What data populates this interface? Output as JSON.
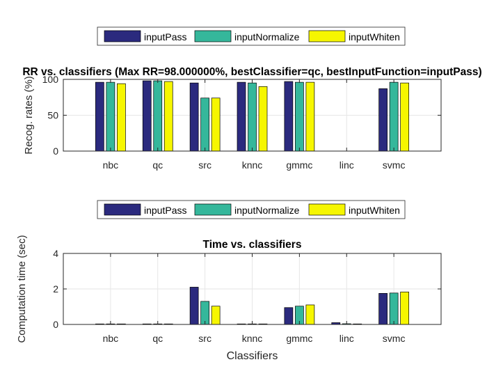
{
  "figure": {
    "xlabel": "Classifiers"
  },
  "colors": {
    "inputPass": "#2b2a7e",
    "inputNormalize": "#35b79b",
    "inputWhiten": "#f6f600"
  },
  "chart_data": [
    {
      "type": "bar",
      "title": "RR vs. classifiers (Max RR=98.000000%, bestClassifier=qc, bestInputFunction=inputPass)",
      "xlabel": "",
      "ylabel": "Recog. rates (%)",
      "categories": [
        "nbc",
        "qc",
        "src",
        "knnc",
        "gmmc",
        "linc",
        "svmc"
      ],
      "series": [
        {
          "name": "inputPass",
          "values": [
            96,
            98,
            95,
            96,
            97,
            null,
            87
          ]
        },
        {
          "name": "inputNormalize",
          "values": [
            96,
            98,
            74,
            95,
            96,
            null,
            96
          ]
        },
        {
          "name": "inputWhiten",
          "values": [
            94,
            97,
            74,
            90,
            96,
            null,
            95
          ]
        }
      ],
      "ylim": [
        0,
        100
      ],
      "yticks": [
        0,
        50,
        100
      ],
      "grid": true,
      "legend": "top-center, horizontal"
    },
    {
      "type": "bar",
      "title": "Time vs. classifiers",
      "xlabel": "Classifiers",
      "ylabel": "Computation time (sec)",
      "categories": [
        "nbc",
        "qc",
        "src",
        "knnc",
        "gmmc",
        "linc",
        "svmc"
      ],
      "series": [
        {
          "name": "inputPass",
          "values": [
            0.03,
            0.03,
            2.1,
            0.03,
            0.95,
            0.1,
            1.75
          ]
        },
        {
          "name": "inputNormalize",
          "values": [
            0.03,
            0.03,
            1.3,
            0.03,
            1.03,
            0.04,
            1.77
          ]
        },
        {
          "name": "inputWhiten",
          "values": [
            0.03,
            0.03,
            1.03,
            0.03,
            1.1,
            0.03,
            1.83
          ]
        }
      ],
      "ylim": [
        0,
        4
      ],
      "yticks": [
        0,
        2,
        4
      ],
      "grid": true,
      "legend": "top-center, horizontal"
    }
  ]
}
